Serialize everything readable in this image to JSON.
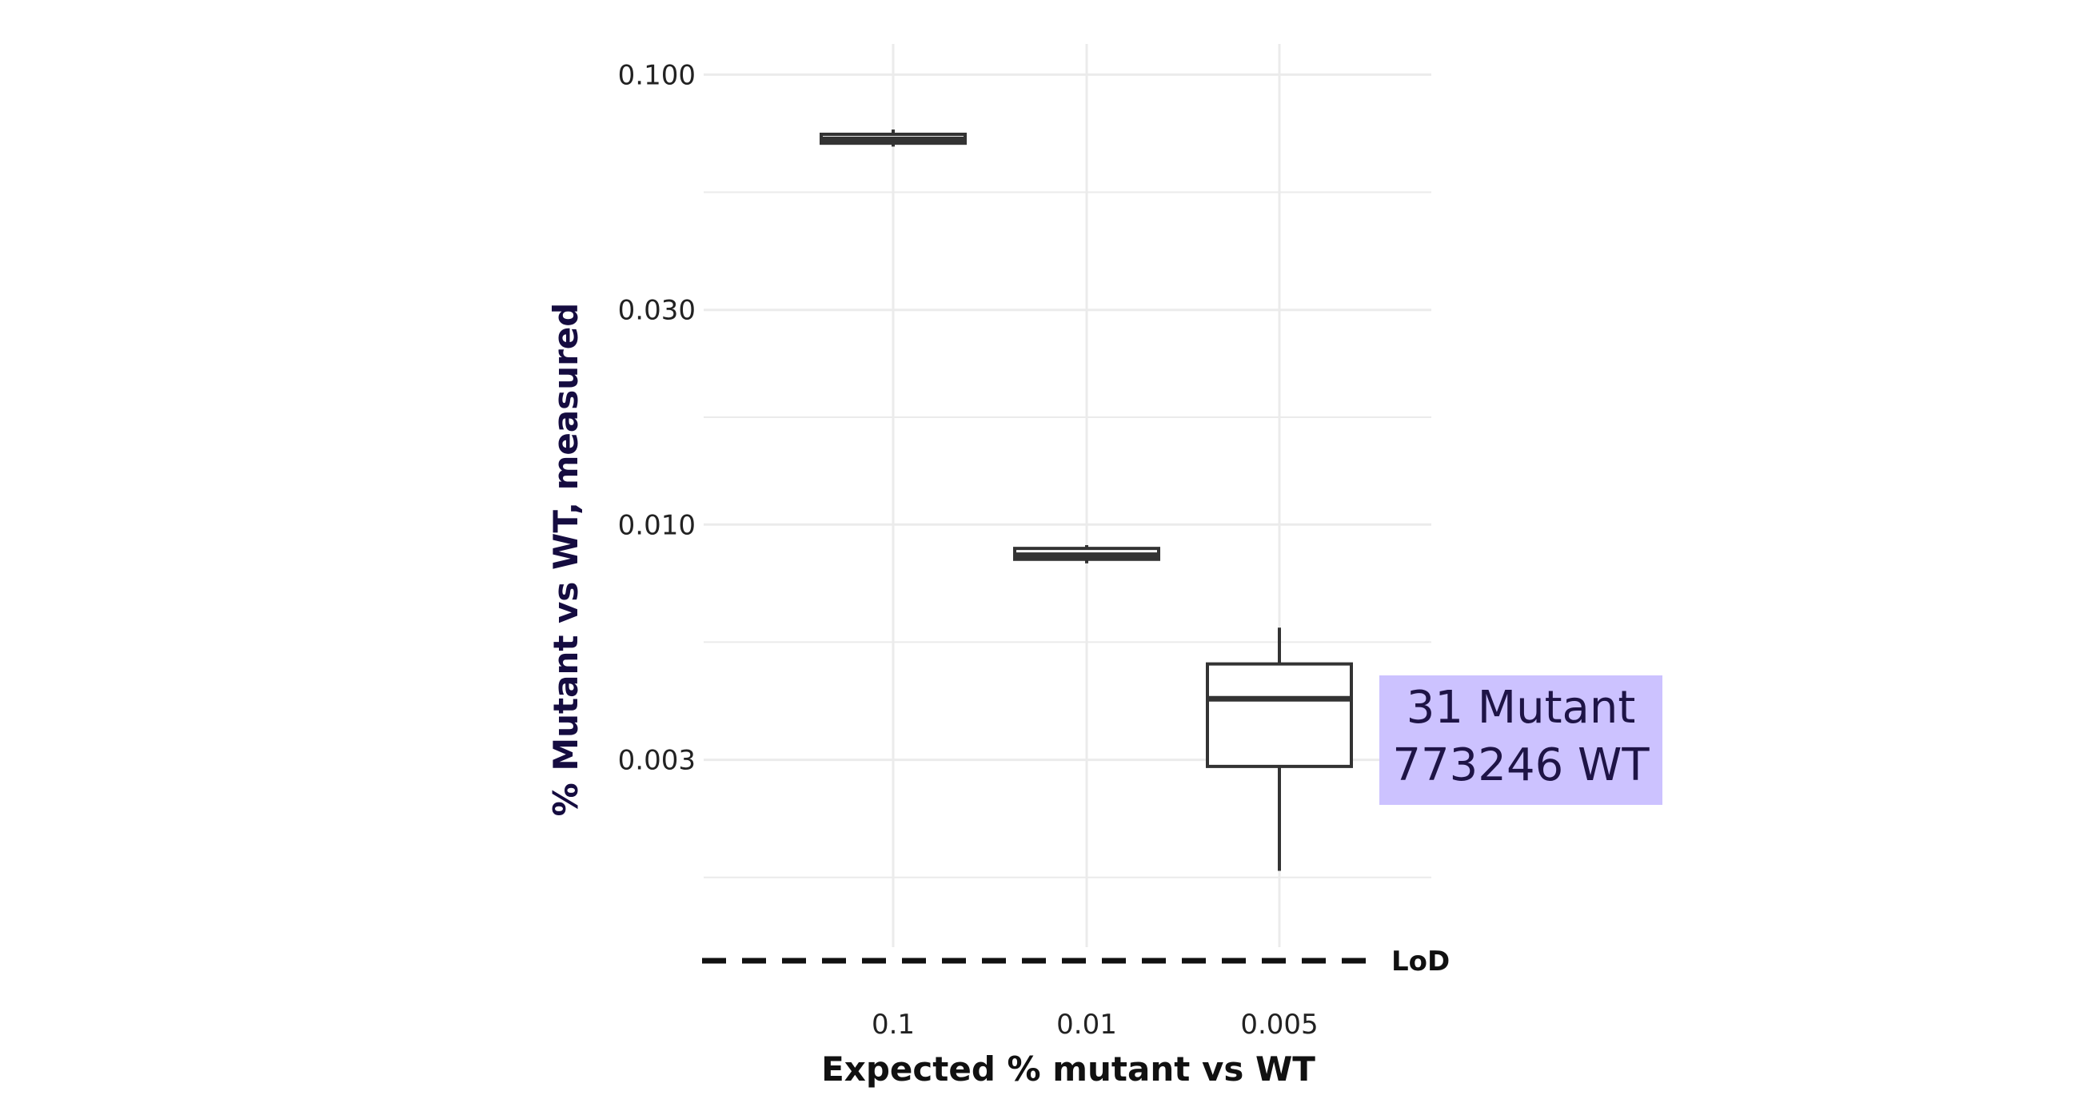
{
  "chart_data": {
    "type": "box",
    "xlabel": "Expected % mutant vs WT",
    "ylabel": "% Mutant vs WT, measured",
    "y_scale": "log",
    "ylim": [
      0.00115,
      0.117
    ],
    "y_ticks": [
      0.003,
      0.01,
      0.03,
      0.1
    ],
    "y_tick_labels": [
      "0.003",
      "0.010",
      "0.030",
      "0.100"
    ],
    "categories": [
      "0.1",
      "0.01",
      "0.005"
    ],
    "boxes": [
      {
        "category": "0.1",
        "whisker_low": 0.0692,
        "q1": 0.0704,
        "median": 0.0718,
        "q3": 0.0737,
        "whisker_high": 0.0755
      },
      {
        "category": "0.01",
        "whisker_low": 0.0082,
        "q1": 0.00837,
        "median": 0.00855,
        "q3": 0.00885,
        "whisker_high": 0.009
      },
      {
        "category": "0.005",
        "whisker_low": 0.0017,
        "q1": 0.0029,
        "median": 0.0041,
        "q3": 0.0049,
        "whisker_high": 0.0059
      }
    ],
    "reference_line": {
      "label": "LoD",
      "style": "dashed"
    },
    "annotation": {
      "lines": [
        "31 Mutant",
        "773246 WT"
      ],
      "box_color": "#ccc2ff",
      "text_color": "#1e1446"
    },
    "colors": {
      "axis_title": "#150c40",
      "box_stroke": "#333333",
      "grid": "#ebebeb"
    },
    "grid": true,
    "legend": false
  }
}
